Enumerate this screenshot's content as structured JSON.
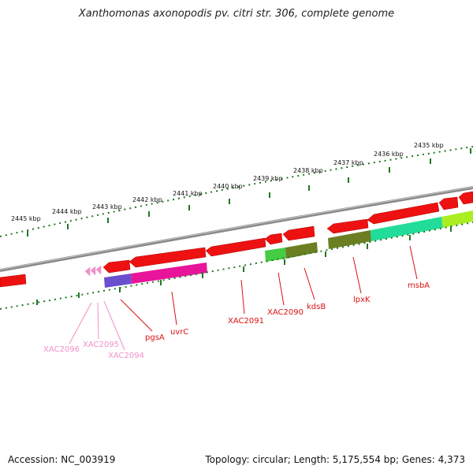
{
  "title": "Xanthomonas axonopodis pv. citri str. 306, complete genome",
  "footer": {
    "accession": "Accession: NC_003919",
    "summary": "Topology: circular; Length: 5,175,554 bp; Genes: 4,373"
  },
  "scale": {
    "unit": "kbp",
    "tick_labels": [
      "2445 kbp",
      "2444 kbp",
      "2443 kbp",
      "2442 kbp",
      "2441 kbp",
      "2440 kbp",
      "2439 kbp",
      "2438 kbp",
      "2437 kbp",
      "2436 kbp",
      "2435 kbp"
    ]
  },
  "gene_labels": [
    {
      "name": "XAC2096",
      "color": "#f090c8"
    },
    {
      "name": "XAC2095",
      "color": "#f090c8"
    },
    {
      "name": "XAC2094",
      "color": "#f090c8"
    },
    {
      "name": "pgsA",
      "color": "#dd1111"
    },
    {
      "name": "uvrC",
      "color": "#dd1111"
    },
    {
      "name": "XAC2091",
      "color": "#dd1111"
    },
    {
      "name": "XAC2090",
      "color": "#dd1111"
    },
    {
      "name": "kdsB",
      "color": "#dd1111"
    },
    {
      "name": "lpxK",
      "color": "#dd1111"
    },
    {
      "name": "msbA",
      "color": "#dd1111"
    }
  ],
  "colors": {
    "gene": "#ee1111",
    "backbone": "#888888",
    "ticks": "#227722",
    "pink_label": "#f090c8",
    "red_label": "#dd1111",
    "feature_purple": "#6a4fcf",
    "feature_magenta": "#e8159a",
    "feature_green": "#44cc44",
    "feature_olive": "#6b7f22",
    "feature_teal": "#22dd99",
    "feature_lime": "#aaee22"
  }
}
